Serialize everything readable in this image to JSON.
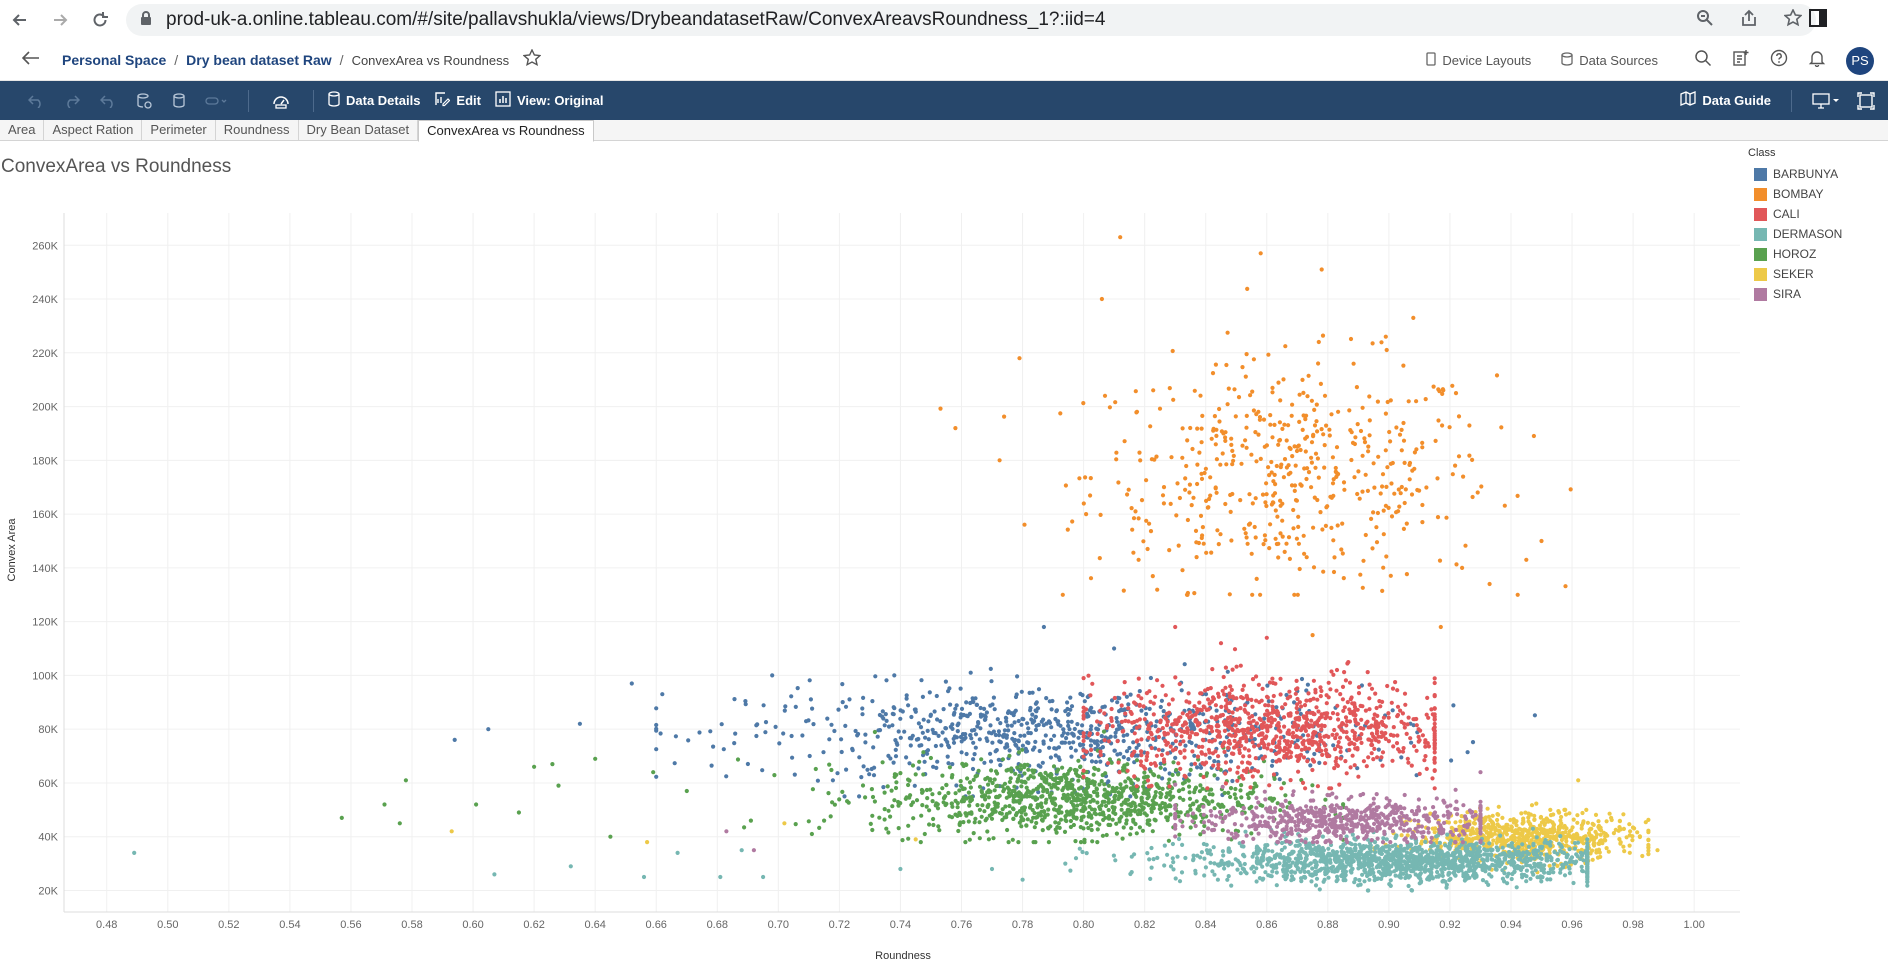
{
  "browser": {
    "url": "prod-uk-a.online.tableau.com/#/site/pallavshukla/views/DrybeandatasetRaw/ConvexAreavsRoundness_1?:iid=4"
  },
  "header": {
    "breadcrumbs": [
      "Personal Space",
      "Dry bean dataset Raw"
    ],
    "current": "ConvexArea vs Roundness",
    "device_layouts": "Device Layouts",
    "data_sources": "Data Sources",
    "avatar": "PS"
  },
  "toolbar": {
    "data_details": "Data Details",
    "edit": "Edit",
    "view": "View: Original",
    "data_guide": "Data Guide",
    "bg_color": "#27476b"
  },
  "tabs": [
    "Area",
    "Aspect Ration",
    "Perimeter",
    "Roundness",
    "Dry Bean Dataset",
    "ConvexArea vs Roundness"
  ],
  "active_tab": 5,
  "chart_data": {
    "type": "scatter",
    "title": "ConvexArea vs Roundness",
    "xlabel": "Roundness",
    "ylabel": "Convex Area",
    "xlim": [
      0.466,
      1.016
    ],
    "ylim": [
      12000,
      272000
    ],
    "x_ticks": [
      "0.48",
      "0.50",
      "0.52",
      "0.54",
      "0.56",
      "0.58",
      "0.60",
      "0.62",
      "0.64",
      "0.66",
      "0.68",
      "0.70",
      "0.72",
      "0.74",
      "0.76",
      "0.78",
      "0.80",
      "0.82",
      "0.84",
      "0.86",
      "0.88",
      "0.90",
      "0.92",
      "0.94",
      "0.96",
      "0.98",
      "1.00"
    ],
    "y_ticks": [
      "20K",
      "40K",
      "60K",
      "80K",
      "100K",
      "120K",
      "140K",
      "160K",
      "180K",
      "200K",
      "220K",
      "240K",
      "260K"
    ],
    "grid": true,
    "legend_title": "Class",
    "legend_position": "right",
    "series": [
      {
        "name": "BARBUNYA",
        "color": "#4e79a7",
        "clusters": [
          [
            0.79,
            78000,
            0.05,
            9000,
            800
          ]
        ],
        "points": [
          [
            0.594,
            76000
          ],
          [
            0.605,
            80000
          ],
          [
            0.635,
            82000
          ],
          [
            0.652,
            97000
          ],
          [
            0.662,
            93000
          ],
          [
            0.698,
            100000
          ],
          [
            0.738,
            100000
          ],
          [
            0.787,
            118000
          ],
          [
            0.763,
            101000
          ],
          [
            0.81,
            110000
          ]
        ]
      },
      {
        "name": "BOMBAY",
        "color": "#f28e2b",
        "clusters": [
          [
            0.868,
            175000,
            0.033,
            21000,
            520
          ]
        ],
        "points": [
          [
            0.758,
            192000
          ],
          [
            0.779,
            218000
          ],
          [
            0.812,
            263000
          ],
          [
            0.806,
            240000
          ],
          [
            0.858,
            257000
          ],
          [
            0.878,
            251000
          ],
          [
            0.908,
            233000
          ],
          [
            0.95,
            150000
          ],
          [
            0.945,
            143000
          ],
          [
            0.933,
            134000
          ],
          [
            0.917,
            118000
          ],
          [
            0.899,
            226000
          ],
          [
            0.924,
            140000
          ],
          [
            0.875,
            115000
          ],
          [
            0.817,
            161000
          ],
          [
            0.826,
            167000
          ],
          [
            0.807,
            204000
          ],
          [
            0.818,
            143000
          ]
        ]
      },
      {
        "name": "CALI",
        "color": "#e15759",
        "clusters": [
          [
            0.862,
            80000,
            0.03,
            9000,
            950
          ]
        ],
        "points": [
          [
            0.83,
            118000
          ],
          [
            0.845,
            112000
          ],
          [
            0.86,
            114000
          ],
          [
            0.883,
            102000
          ],
          [
            0.905,
            82000
          ],
          [
            0.912,
            70000
          ]
        ]
      },
      {
        "name": "DERMASON",
        "color": "#76b7b2",
        "clusters": [
          [
            0.905,
            31000,
            0.035,
            3800,
            1500
          ]
        ],
        "points": [
          [
            0.489,
            34000
          ],
          [
            0.607,
            26000
          ],
          [
            0.632,
            29000
          ],
          [
            0.656,
            25000
          ],
          [
            0.667,
            34000
          ],
          [
            0.681,
            25000
          ],
          [
            0.688,
            35000
          ],
          [
            0.695,
            25000
          ],
          [
            0.74,
            28000
          ],
          [
            0.77,
            28000
          ],
          [
            0.78,
            24000
          ],
          [
            0.794,
            30000
          ]
        ]
      },
      {
        "name": "HOROZ",
        "color": "#59a14f",
        "clusters": [
          [
            0.795,
            54000,
            0.032,
            7000,
            1000
          ]
        ],
        "points": [
          [
            0.557,
            47000
          ],
          [
            0.571,
            52000
          ],
          [
            0.576,
            45000
          ],
          [
            0.578,
            61000
          ],
          [
            0.601,
            52000
          ],
          [
            0.615,
            49000
          ],
          [
            0.62,
            66000
          ],
          [
            0.626,
            67000
          ],
          [
            0.628,
            59000
          ],
          [
            0.64,
            69000
          ],
          [
            0.645,
            40000
          ],
          [
            0.67,
            57000
          ],
          [
            0.691,
            46000
          ],
          [
            0.711,
            41000
          ],
          [
            0.659,
            64000
          ],
          [
            0.715,
            46000
          ]
        ]
      },
      {
        "name": "SEKER",
        "color": "#edc948",
        "clusters": [
          [
            0.945,
            40000,
            0.018,
            4500,
            700
          ]
        ],
        "points": [
          [
            0.593,
            42000
          ],
          [
            0.657,
            38000
          ],
          [
            0.702,
            45000
          ],
          [
            0.745,
            39000
          ],
          [
            0.962,
            61000
          ],
          [
            0.988,
            35000
          ]
        ]
      },
      {
        "name": "SIRA",
        "color": "#b07aa1",
        "clusters": [
          [
            0.885,
            46000,
            0.025,
            4200,
            600
          ]
        ],
        "points": [
          [
            0.683,
            42000
          ],
          [
            0.692,
            35000
          ]
        ]
      }
    ]
  }
}
